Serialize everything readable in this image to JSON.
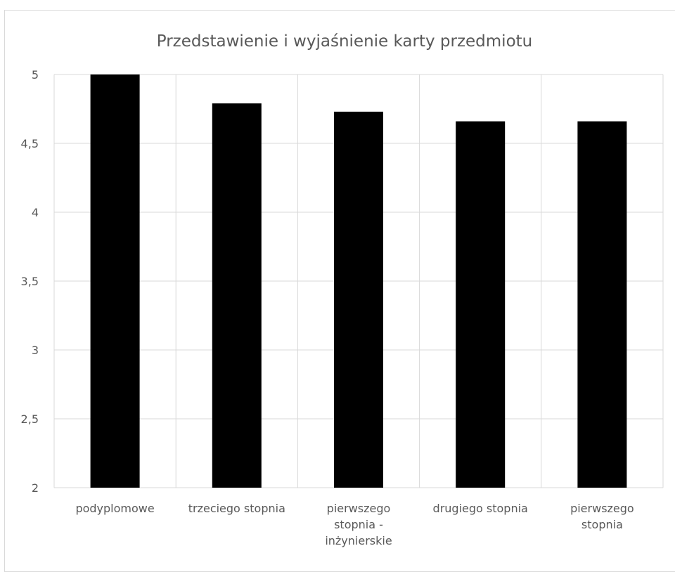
{
  "chart_data": {
    "type": "bar",
    "title": "Przedstawienie i wyjaśnienie karty przedmiotu",
    "xlabel": "",
    "ylabel": "",
    "ylim": [
      2,
      5
    ],
    "yticks": [
      "2",
      "2,5",
      "3",
      "3,5",
      "4",
      "4,5",
      "5"
    ],
    "grid": true,
    "categories": [
      [
        "podyplomowe"
      ],
      [
        "trzeciego stopnia"
      ],
      [
        "pierwszego",
        "stopnia -",
        "inżynierskie"
      ],
      [
        "drugiego stopnia"
      ],
      [
        "pierwszego",
        "stopnia"
      ]
    ],
    "values": [
      5.0,
      4.79,
      4.73,
      4.66,
      4.66
    ],
    "bar_color": "#000000",
    "grid_color": "#d9d9d9",
    "text_color": "#595959"
  }
}
